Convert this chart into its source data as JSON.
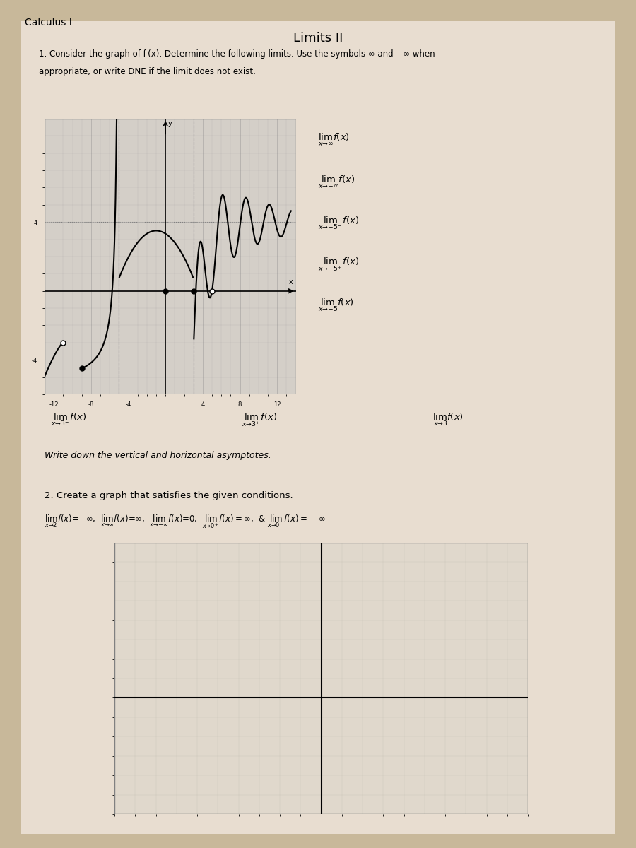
{
  "title": "Limits II",
  "bg_color": "#c8b89a",
  "paper_color": "#e8ddd0",
  "section1_text": "1. Consider the graph of f\\u2009(x). Determine the following limits. Use the symbols \\u221e and \\u2212\\u221e when\nappropriate, or write DNE if the limit does not exist.",
  "limits_right": [
    "lim f(x)\nx\\u2192\\u221e",
    "lim f(x)\nx\\u2192\\u2212\\u221e",
    "lim f(x)\nx\\u2192\\u22125\\u207b",
    "lim f(x)\nx\\u2192\\u22125\\u207a",
    "lim f(x)\nx\\u2192\\u22125"
  ],
  "limits_bottom": [
    "lim f(x)\nx\\u21923\\u207b",
    "lim f(x)\nx\\u21923\\u207a",
    "lim f(x)\nx\\u21923"
  ],
  "asymptotes_text": "Write down the vertical and horizontal asymptotes.",
  "section2_text": "2. Create a graph that satisfies the given conditions.",
  "conditions_text": "lim f(x) = \\u2212\\u221e,  lim f(x) = \\u221e,  lim f(x) = 0,  lim f(x) = \\u221e,  & lim f(x) = \\u2212\\u221e\nx\\u21922              x\\u2192\\u221e            x\\u2192\\u2212\\u221e            x\\u21920\\u207a            x\\u21920\\u207b"
}
